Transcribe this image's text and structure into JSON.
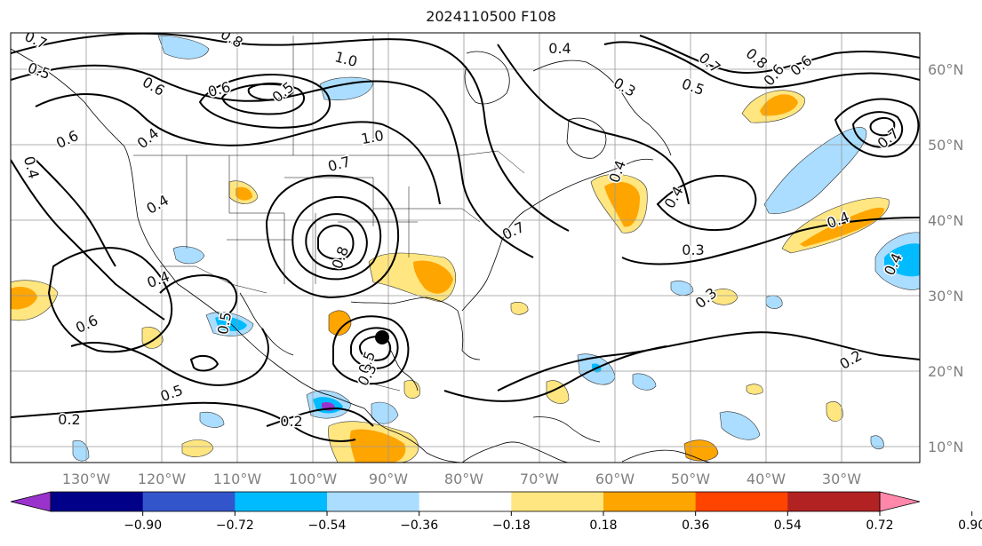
{
  "title": "2024110500 F108",
  "lon_labels": [
    "130°W",
    "120°W",
    "110°W",
    "100°W",
    "90°W",
    "80°W",
    "70°W",
    "60°W",
    "50°W",
    "40°W",
    "30°W"
  ],
  "lat_labels": [
    "60°N",
    "50°N",
    "40°N",
    "30°N",
    "20°N",
    "10°N"
  ],
  "colorbar": {
    "ticks": [
      "−0.90",
      "−0.72",
      "−0.54",
      "−0.36",
      "−0.18",
      "0.18",
      "0.36",
      "0.54",
      "0.72",
      "0.90"
    ],
    "colors": [
      "#9933cc",
      "#000088",
      "#3355cc",
      "#00bbff",
      "#aaddff",
      "#ffffff",
      "#ffe680",
      "#ffa500",
      "#ff4400",
      "#b22222",
      "#ff88aa"
    ]
  },
  "contour_labels": [
    {
      "text": "0.7"
    },
    {
      "text": "0.5"
    },
    {
      "text": "0.8"
    },
    {
      "text": "1.0"
    },
    {
      "text": "0.6"
    },
    {
      "text": "0.6"
    },
    {
      "text": "0.5"
    },
    {
      "text": "0.6"
    },
    {
      "text": "0.4"
    },
    {
      "text": "0.4"
    },
    {
      "text": "1.0"
    },
    {
      "text": "0.7"
    },
    {
      "text": "0.4"
    },
    {
      "text": "0.8"
    },
    {
      "text": "0.4"
    },
    {
      "text": "0.4"
    },
    {
      "text": "0.6"
    },
    {
      "text": "0.5"
    },
    {
      "text": "0.2"
    },
    {
      "text": "0.2"
    },
    {
      "text": "0.5"
    },
    {
      "text": "0.3"
    },
    {
      "text": "0.4"
    },
    {
      "text": "0.3"
    },
    {
      "text": "0.5"
    },
    {
      "text": "0.7"
    },
    {
      "text": "0.8"
    },
    {
      "text": "0.6"
    },
    {
      "text": "0.3"
    },
    {
      "text": "0.4"
    },
    {
      "text": "0.3"
    },
    {
      "text": "0.2"
    },
    {
      "text": "0.4"
    },
    {
      "text": "0.4"
    },
    {
      "text": "0.7"
    },
    {
      "text": "0.7"
    },
    {
      "text": "0.5"
    },
    {
      "text": "0.6"
    }
  ]
}
